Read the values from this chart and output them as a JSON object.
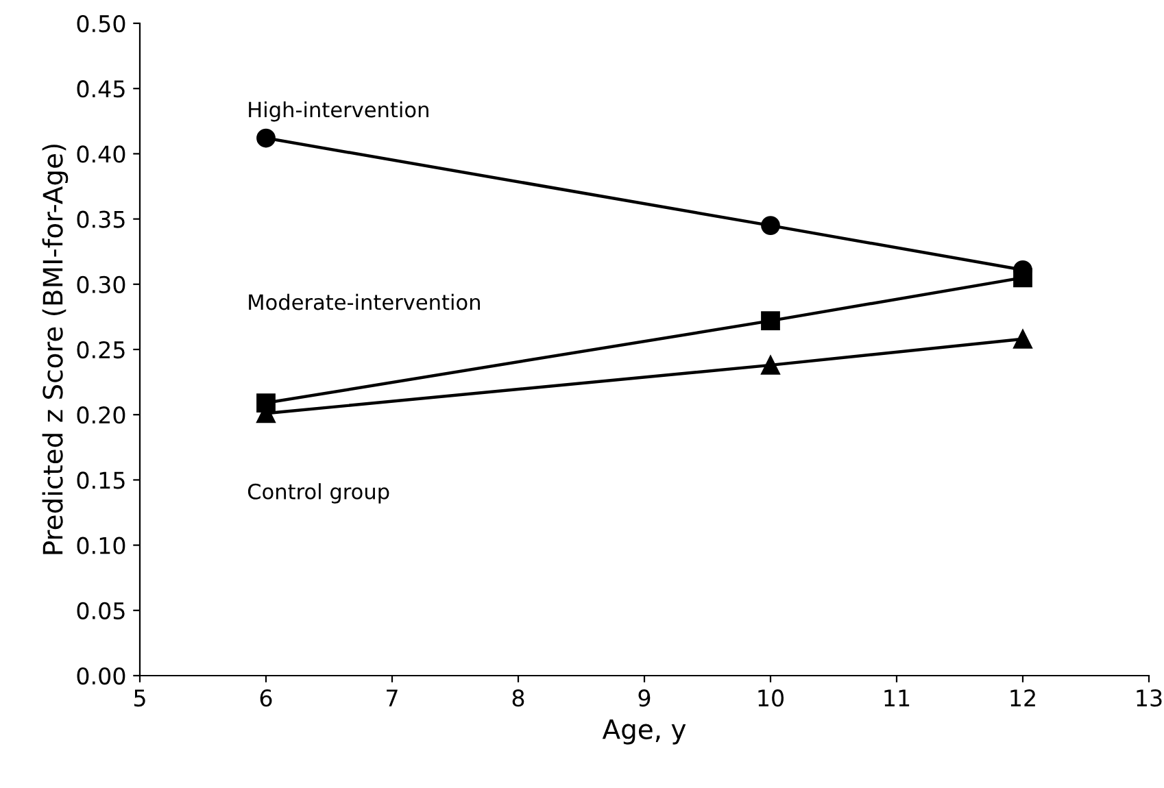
{
  "chart_data": {
    "type": "line",
    "xlabel": "Age, y",
    "ylabel": "Predicted z Score (BMI-for-Age)",
    "x": [
      6,
      10,
      12
    ],
    "series": [
      {
        "name": "High-intervention",
        "color": "#000000",
        "marker": "circle",
        "values": [
          0.412,
          0.345,
          0.311
        ]
      },
      {
        "name": "Moderate-intervention",
        "color": "#000000",
        "marker": "square",
        "values": [
          0.209,
          0.272,
          0.305
        ]
      },
      {
        "name": "Control group",
        "color": "#000000",
        "marker": "triangle",
        "values": [
          0.201,
          0.238,
          0.258
        ]
      }
    ],
    "xlim": [
      5,
      13
    ],
    "xticks": [
      5,
      6,
      7,
      8,
      9,
      10,
      11,
      12,
      13
    ],
    "ylim": [
      0,
      0.5
    ],
    "yticks": [
      {
        "value": 0,
        "label": "0.00"
      },
      {
        "value": 0.05,
        "label": "0.05"
      },
      {
        "value": 0.1,
        "label": "0.10"
      },
      {
        "value": 0.15,
        "label": "0.15"
      },
      {
        "value": 0.2,
        "label": "0.20"
      },
      {
        "value": 0.25,
        "label": "0.25"
      },
      {
        "value": 0.3,
        "label": "0.30"
      },
      {
        "value": 0.35,
        "label": "0.35"
      },
      {
        "value": 0.4,
        "label": "0.40"
      },
      {
        "value": 0.45,
        "label": "0.45"
      },
      {
        "value": 0.5,
        "label": "0.50"
      }
    ],
    "grid": false,
    "legend": false,
    "line_style": "solid"
  }
}
